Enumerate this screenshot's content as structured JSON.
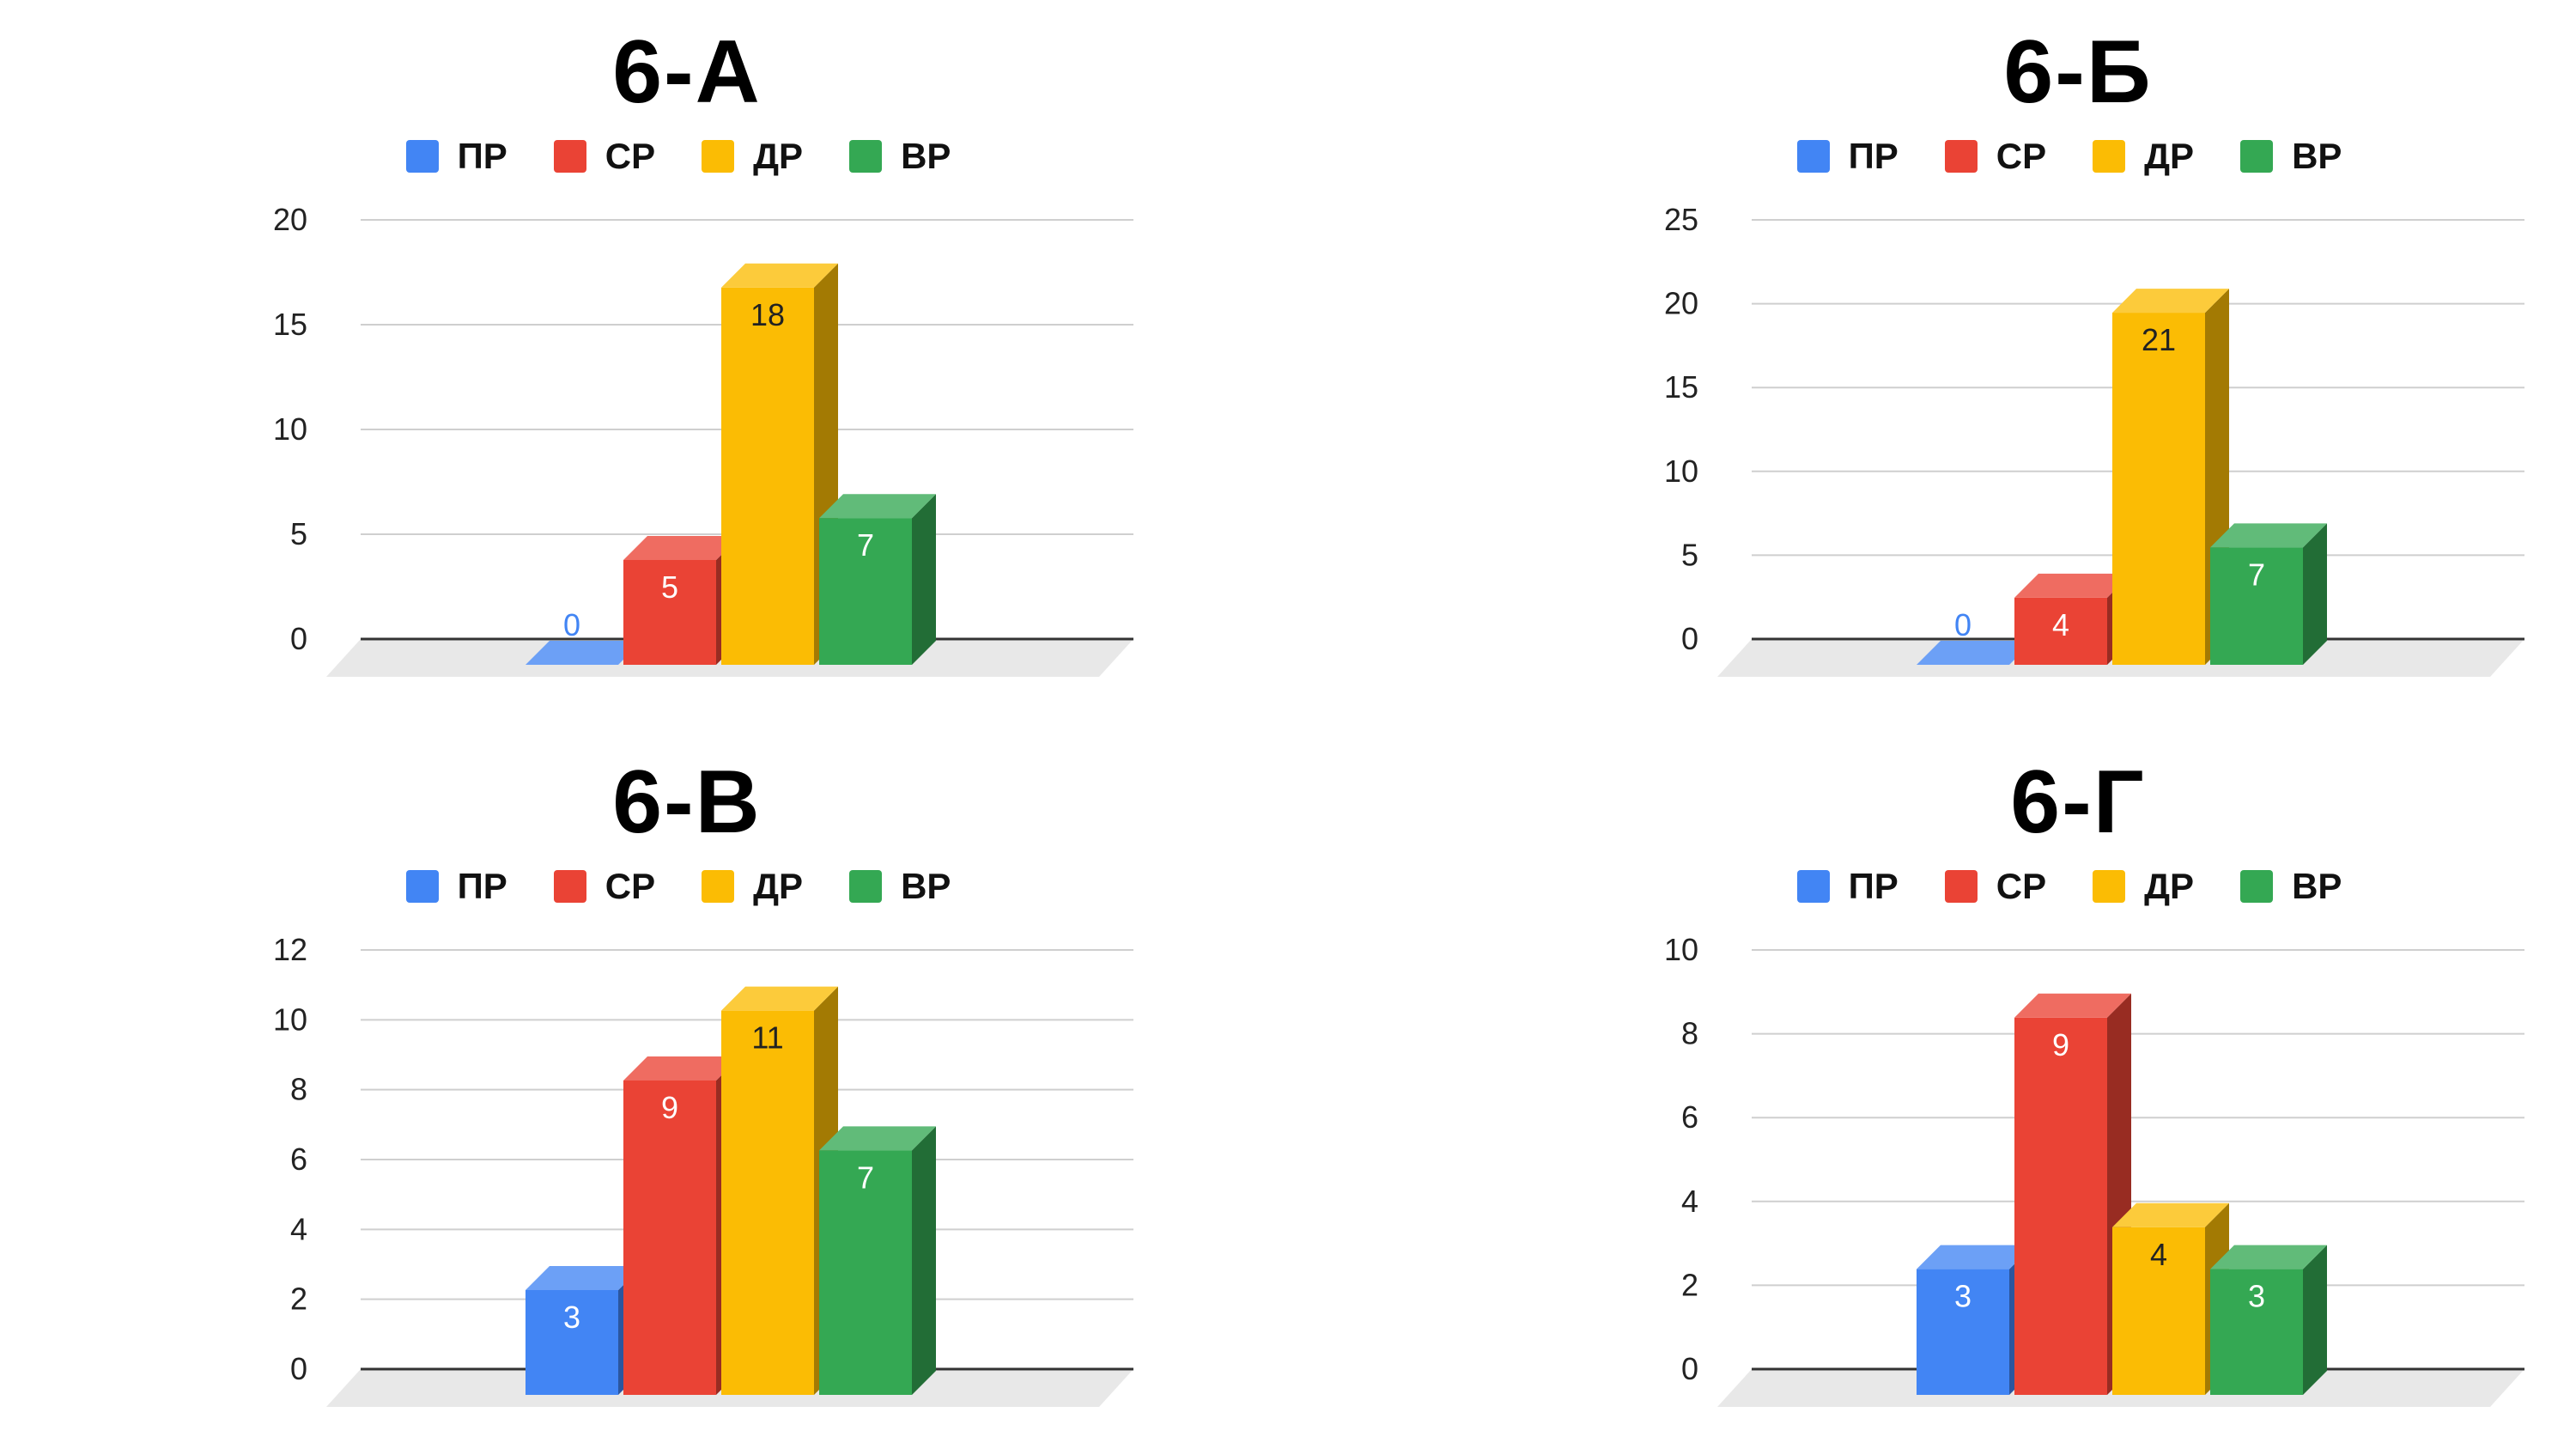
{
  "chart_data": [
    {
      "type": "bar",
      "title": "6-А",
      "categories": [
        "ПР",
        "СР",
        "ДР",
        "ВР"
      ],
      "values": [
        0,
        5,
        18,
        7
      ],
      "yticks": [
        0,
        5,
        10,
        15,
        20
      ],
      "ylim": [
        0,
        20
      ],
      "legend": "top",
      "grid": true,
      "style": "3d"
    },
    {
      "type": "bar",
      "title": "6-Б",
      "categories": [
        "ПР",
        "СР",
        "ДР",
        "ВР"
      ],
      "values": [
        0,
        4,
        21,
        7
      ],
      "yticks": [
        0,
        5,
        10,
        15,
        20,
        25
      ],
      "ylim": [
        0,
        25
      ],
      "legend": "top",
      "grid": true,
      "style": "3d"
    },
    {
      "type": "bar",
      "title": "6-В",
      "categories": [
        "ПР",
        "СР",
        "ДР",
        "ВР"
      ],
      "values": [
        3,
        9,
        11,
        7
      ],
      "yticks": [
        0,
        2,
        4,
        6,
        8,
        10,
        12
      ],
      "ylim": [
        0,
        12
      ],
      "legend": "top",
      "grid": true,
      "style": "3d"
    },
    {
      "type": "bar",
      "title": "6-Г",
      "categories": [
        "ПР",
        "СР",
        "ДР",
        "ВР"
      ],
      "values": [
        3,
        9,
        4,
        3
      ],
      "yticks": [
        0,
        2,
        4,
        6,
        8,
        10
      ],
      "ylim": [
        0,
        10
      ],
      "legend": "top",
      "grid": true,
      "style": "3d"
    }
  ],
  "colors": {
    "ПР": "#4285f4",
    "СР": "#ea4335",
    "ДР": "#fbbc04",
    "ВР": "#34a853"
  }
}
